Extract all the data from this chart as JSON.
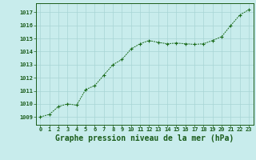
{
  "x": [
    0,
    1,
    2,
    3,
    4,
    5,
    6,
    7,
    8,
    9,
    10,
    11,
    12,
    13,
    14,
    15,
    16,
    17,
    18,
    19,
    20,
    21,
    22,
    23
  ],
  "y": [
    1009.0,
    1009.2,
    1009.8,
    1010.0,
    1009.9,
    1011.1,
    1011.4,
    1012.2,
    1013.0,
    1013.4,
    1014.2,
    1014.6,
    1014.85,
    1014.7,
    1014.6,
    1014.65,
    1014.6,
    1014.55,
    1014.6,
    1014.85,
    1015.15,
    1016.0,
    1016.8,
    1017.2
  ],
  "line_color": "#1a6b1a",
  "marker_color": "#1a6b1a",
  "bg_color": "#c8ecec",
  "grid_color": "#a8d4d4",
  "title": "Graphe pression niveau de la mer (hPa)",
  "title_color": "#1a5c1a",
  "title_fontsize": 7.0,
  "ylabel_values": [
    1009,
    1010,
    1011,
    1012,
    1013,
    1014,
    1015,
    1016,
    1017
  ],
  "ylim": [
    1008.4,
    1017.7
  ],
  "xlim": [
    -0.5,
    23.5
  ],
  "tick_color": "#1a5c1a",
  "spine_color": "#1a5c1a"
}
